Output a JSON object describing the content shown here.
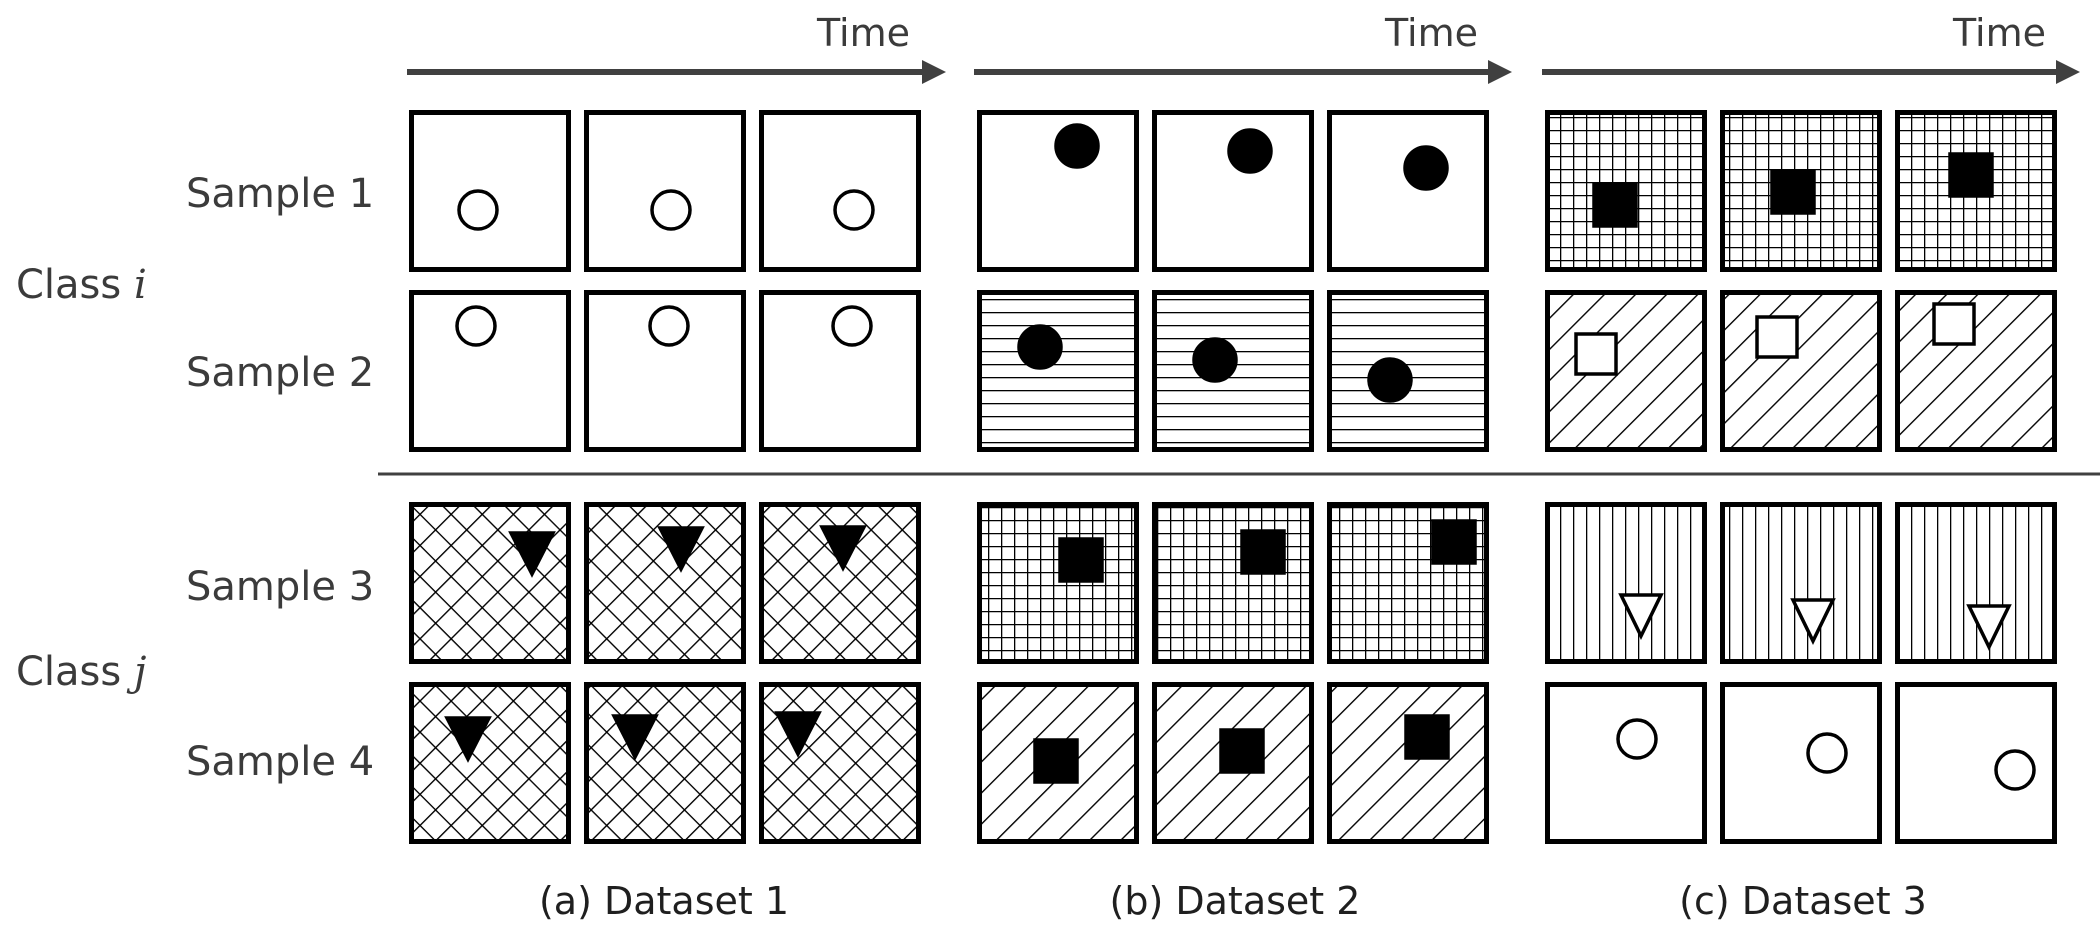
{
  "axis_label": "Time",
  "classes": [
    {
      "label": "Class",
      "symbol": "i"
    },
    {
      "label": "Class",
      "symbol": "j"
    }
  ],
  "samples": [
    "Sample 1",
    "Sample 2",
    "Sample 3",
    "Sample 4"
  ],
  "datasets": [
    {
      "caption": "(a) Dataset 1",
      "rows": [
        {
          "background": "none",
          "shape": "circle",
          "filled": false,
          "motion": "right"
        },
        {
          "background": "none",
          "shape": "circle",
          "filled": false,
          "motion": "right"
        },
        {
          "background": "crosshatch",
          "shape": "triangle-down",
          "filled": true,
          "motion": "right"
        },
        {
          "background": "crosshatch",
          "shape": "triangle-down",
          "filled": true,
          "motion": "right"
        }
      ]
    },
    {
      "caption": "(b) Dataset 2",
      "rows": [
        {
          "background": "none",
          "shape": "circle",
          "filled": true,
          "motion": "right-down"
        },
        {
          "background": "horizontal",
          "shape": "circle",
          "filled": true,
          "motion": "right-down"
        },
        {
          "background": "grid",
          "shape": "square",
          "filled": true,
          "motion": "right-up"
        },
        {
          "background": "diagonal",
          "shape": "square",
          "filled": true,
          "motion": "right-up"
        }
      ]
    },
    {
      "caption": "(c) Dataset 3",
      "rows": [
        {
          "background": "grid",
          "shape": "square",
          "filled": true,
          "motion": "right-up"
        },
        {
          "background": "diagonal",
          "shape": "square",
          "filled": false,
          "motion": "right-up"
        },
        {
          "background": "vertical",
          "shape": "triangle-down",
          "filled": false,
          "motion": "right"
        },
        {
          "background": "none",
          "shape": "circle",
          "filled": false,
          "motion": "right-down"
        }
      ]
    }
  ]
}
